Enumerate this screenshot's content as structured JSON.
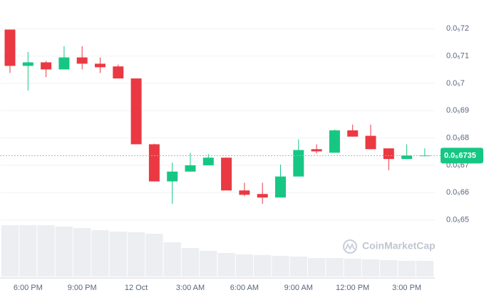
{
  "chart_data": {
    "type": "candlestick",
    "categories": [
      null,
      "6:00 PM",
      null,
      null,
      "9:00 PM",
      null,
      null,
      "12 Oct",
      null,
      null,
      "3:00 AM",
      null,
      null,
      "6:00 AM",
      null,
      null,
      "9:00 AM",
      null,
      null,
      "12:00 PM",
      null,
      null,
      "3:00 PM",
      null
    ],
    "open": [
      7.197e-06,
      7.064e-06,
      7.077e-06,
      7.051e-06,
      7.095e-06,
      7.072e-06,
      7.062e-06,
      7.018e-06,
      6.777e-06,
      6.641e-06,
      6.677e-06,
      6.7e-06,
      6.728e-06,
      6.608e-06,
      6.595e-06,
      6.582e-06,
      6.659e-06,
      6.759e-06,
      6.746e-06,
      6.828e-06,
      6.808e-06,
      6.762e-06,
      6.723e-06,
      6.734e-06
    ],
    "high": [
      7.197e-06,
      7.115e-06,
      7.082e-06,
      7.136e-06,
      7.136e-06,
      7.095e-06,
      7.069e-06,
      7.018e-06,
      6.779e-06,
      6.71e-06,
      6.746e-06,
      6.741e-06,
      6.728e-06,
      6.636e-06,
      6.636e-06,
      6.703e-06,
      6.795e-06,
      6.777e-06,
      6.831e-06,
      6.849e-06,
      6.849e-06,
      6.762e-06,
      6.777e-06,
      6.762e-06
    ],
    "low": [
      7.038e-06,
      6.974e-06,
      7.023e-06,
      7.051e-06,
      7.051e-06,
      7.038e-06,
      7.018e-06,
      6.777e-06,
      6.641e-06,
      6.559e-06,
      6.677e-06,
      6.7e-06,
      6.608e-06,
      6.587e-06,
      6.559e-06,
      6.582e-06,
      6.659e-06,
      6.744e-06,
      6.746e-06,
      6.805e-06,
      6.759e-06,
      6.682e-06,
      6.723e-06,
      6.733e-06
    ],
    "close": [
      7.064e-06,
      7.077e-06,
      7.051e-06,
      7.095e-06,
      7.072e-06,
      7.059e-06,
      7.018e-06,
      6.777e-06,
      6.641e-06,
      6.677e-06,
      6.7e-06,
      6.728e-06,
      6.608e-06,
      6.592e-06,
      6.582e-06,
      6.659e-06,
      6.756e-06,
      6.751e-06,
      6.828e-06,
      6.805e-06,
      6.759e-06,
      6.723e-06,
      6.736e-06,
      6.736e-06
    ],
    "volume": [
      72,
      72,
      72,
      70,
      68,
      65,
      63,
      62,
      60,
      48,
      40,
      36,
      33,
      31,
      30,
      29,
      28,
      26,
      26,
      25,
      24,
      23,
      22,
      22
    ],
    "up_color": "#16c784",
    "down_color": "#ea3943",
    "volume_color": "#eceef1",
    "ylim": [
      6.486e-06,
      7.24e-06
    ],
    "yticks": [
      {
        "value": 6.5e-06,
        "label": "0.0₅65"
      },
      {
        "value": 6.6e-06,
        "label": "0.0₅66"
      },
      {
        "value": 6.7e-06,
        "label": "0.0₅67"
      },
      {
        "value": 6.8e-06,
        "label": "0.0₅68"
      },
      {
        "value": 6.9e-06,
        "label": "0.0₅69"
      },
      {
        "value": 7e-06,
        "label": "0.0₅7"
      },
      {
        "value": 7.1e-06,
        "label": "0.0₅71"
      },
      {
        "value": 7.2e-06,
        "label": "0.0₅72"
      }
    ],
    "current_price": {
      "value": 6.7355e-06,
      "label": "0.0₅6735"
    },
    "watermark": "CoinMarketCap",
    "grid": true
  }
}
